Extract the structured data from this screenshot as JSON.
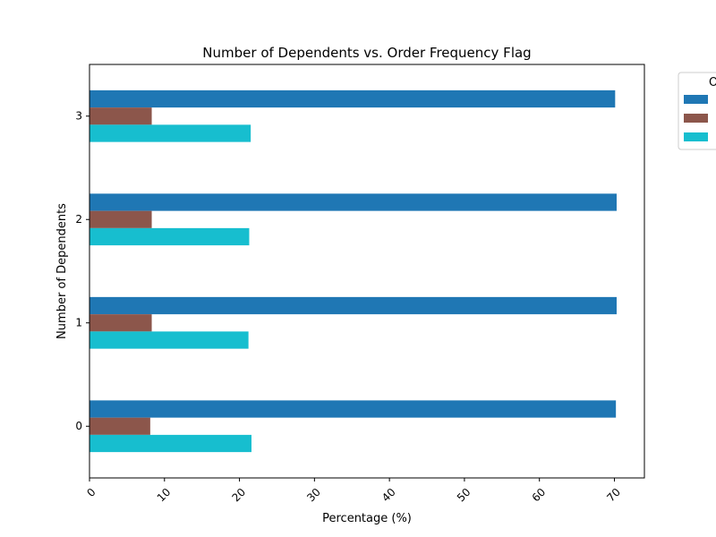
{
  "chart_data": {
    "type": "bar",
    "orientation": "horizontal",
    "title": "Number of Dependents vs. Order Frequency Flag",
    "xlabel": "Percentage (%)",
    "ylabel": "Number of Dependents",
    "categories": [
      "0",
      "1",
      "2",
      "3"
    ],
    "xlim": [
      0,
      74
    ],
    "x_ticks": [
      0,
      10,
      20,
      30,
      40,
      50,
      60,
      70
    ],
    "x_tick_rotation_deg": 45,
    "grid": false,
    "legend": {
      "title": "O",
      "placement": "outside-top-right",
      "labels_visible": false
    },
    "series": [
      {
        "values": [
          70.2,
          70.3,
          70.3,
          70.1
        ],
        "color": "#1f77b4"
      },
      {
        "values": [
          8.1,
          8.3,
          8.3,
          8.3
        ],
        "color": "#8c564b"
      },
      {
        "values": [
          21.6,
          21.2,
          21.3,
          21.5
        ],
        "color": "#17becf"
      }
    ]
  }
}
